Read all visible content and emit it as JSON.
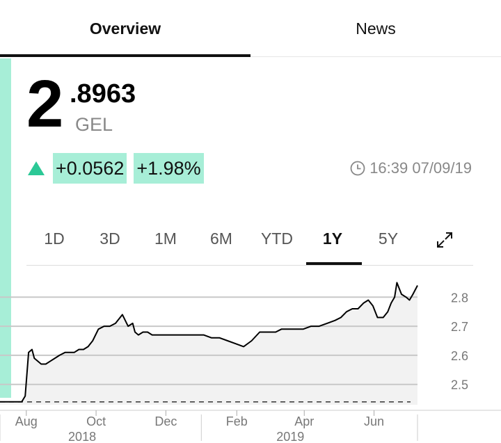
{
  "tabs": [
    {
      "label": "Overview",
      "active": true
    },
    {
      "label": "News",
      "active": false
    }
  ],
  "quote": {
    "price_int": "2",
    "price_dec": ".8963",
    "currency": "GEL",
    "change_abs": "+0.0562",
    "change_pct": "+1.98%",
    "timestamp": "16:39 07/09/19"
  },
  "ranges": [
    {
      "label": "1D",
      "active": false
    },
    {
      "label": "3D",
      "active": false
    },
    {
      "label": "1M",
      "active": false
    },
    {
      "label": "6M",
      "active": false
    },
    {
      "label": "YTD",
      "active": false
    },
    {
      "label": "1Y",
      "active": true
    },
    {
      "label": "5Y",
      "active": false
    }
  ],
  "colors": {
    "accent": "#a7eed7",
    "up": "#2bc896",
    "line": "#000000",
    "area": "#f2f2f2"
  },
  "icons": {
    "expand": "expand-icon",
    "clock": "clock-icon",
    "up": "up-arrow-icon"
  },
  "chart_data": {
    "type": "area",
    "title": "",
    "xlabel": "",
    "ylabel": "",
    "ylim": [
      2.43,
      2.87
    ],
    "y_ticks": [
      2.8,
      2.7,
      2.6,
      2.5
    ],
    "y_tick_labels": [
      "2.8",
      "2.7",
      "2.6",
      "2.5"
    ],
    "x_ticks": [
      {
        "label": "Aug",
        "date": "2018-08-01"
      },
      {
        "label": "Oct",
        "date": "2018-10-01"
      },
      {
        "label": "Dec",
        "date": "2018-12-01"
      },
      {
        "label": "Feb",
        "date": "2019-02-01"
      },
      {
        "label": "Apr",
        "date": "2019-04-01"
      },
      {
        "label": "Jun",
        "date": "2019-06-01"
      }
    ],
    "years": [
      {
        "label": "2018",
        "date": "2018-10-01"
      },
      {
        "label": "2019",
        "date": "2019-04-01"
      }
    ],
    "previous_close": 2.44,
    "x_range": [
      "2018-07-09",
      "2019-07-09"
    ],
    "grid": true,
    "series": [
      {
        "x": [
          "2018-07-09",
          "2018-07-14",
          "2018-07-20",
          "2018-07-25",
          "2018-07-28",
          "2018-07-31",
          "2018-08-03",
          "2018-08-06",
          "2018-08-08",
          "2018-08-11",
          "2018-08-14",
          "2018-08-18",
          "2018-08-22",
          "2018-08-26",
          "2018-08-30",
          "2018-09-04",
          "2018-09-08",
          "2018-09-12",
          "2018-09-16",
          "2018-09-20",
          "2018-09-24",
          "2018-09-28",
          "2018-10-03",
          "2018-10-08",
          "2018-10-13",
          "2018-10-18",
          "2018-10-24",
          "2018-10-29",
          "2018-11-02",
          "2018-11-04",
          "2018-11-07",
          "2018-11-11",
          "2018-11-15",
          "2018-11-19",
          "2018-11-23",
          "2018-11-28",
          "2018-12-05",
          "2018-12-12",
          "2018-12-19",
          "2018-12-26",
          "2019-01-03",
          "2019-01-10",
          "2019-01-17",
          "2019-01-24",
          "2019-01-31",
          "2019-02-07",
          "2019-02-14",
          "2019-02-21",
          "2019-02-28",
          "2019-03-07",
          "2019-03-12",
          "2019-03-17",
          "2019-03-24",
          "2019-03-31",
          "2019-04-07",
          "2019-04-14",
          "2019-04-21",
          "2019-04-28",
          "2019-05-03",
          "2019-05-08",
          "2019-05-13",
          "2019-05-18",
          "2019-05-23",
          "2019-05-27",
          "2019-05-31",
          "2019-06-04",
          "2019-06-09",
          "2019-06-13",
          "2019-06-16",
          "2019-06-19",
          "2019-06-21",
          "2019-06-25",
          "2019-06-29",
          "2019-07-02",
          "2019-07-05",
          "2019-07-09"
        ],
        "values": [
          2.44,
          2.44,
          2.44,
          2.44,
          2.44,
          2.46,
          2.61,
          2.62,
          2.59,
          2.58,
          2.57,
          2.57,
          2.58,
          2.59,
          2.6,
          2.61,
          2.61,
          2.61,
          2.62,
          2.62,
          2.63,
          2.65,
          2.69,
          2.7,
          2.7,
          2.71,
          2.74,
          2.7,
          2.71,
          2.68,
          2.67,
          2.68,
          2.68,
          2.67,
          2.67,
          2.67,
          2.67,
          2.67,
          2.67,
          2.67,
          2.67,
          2.66,
          2.66,
          2.65,
          2.64,
          2.63,
          2.65,
          2.68,
          2.68,
          2.68,
          2.69,
          2.69,
          2.69,
          2.69,
          2.7,
          2.7,
          2.71,
          2.72,
          2.73,
          2.75,
          2.76,
          2.76,
          2.78,
          2.79,
          2.77,
          2.73,
          2.73,
          2.75,
          2.78,
          2.8,
          2.85,
          2.81,
          2.8,
          2.79,
          2.81,
          2.84
        ]
      }
    ]
  }
}
